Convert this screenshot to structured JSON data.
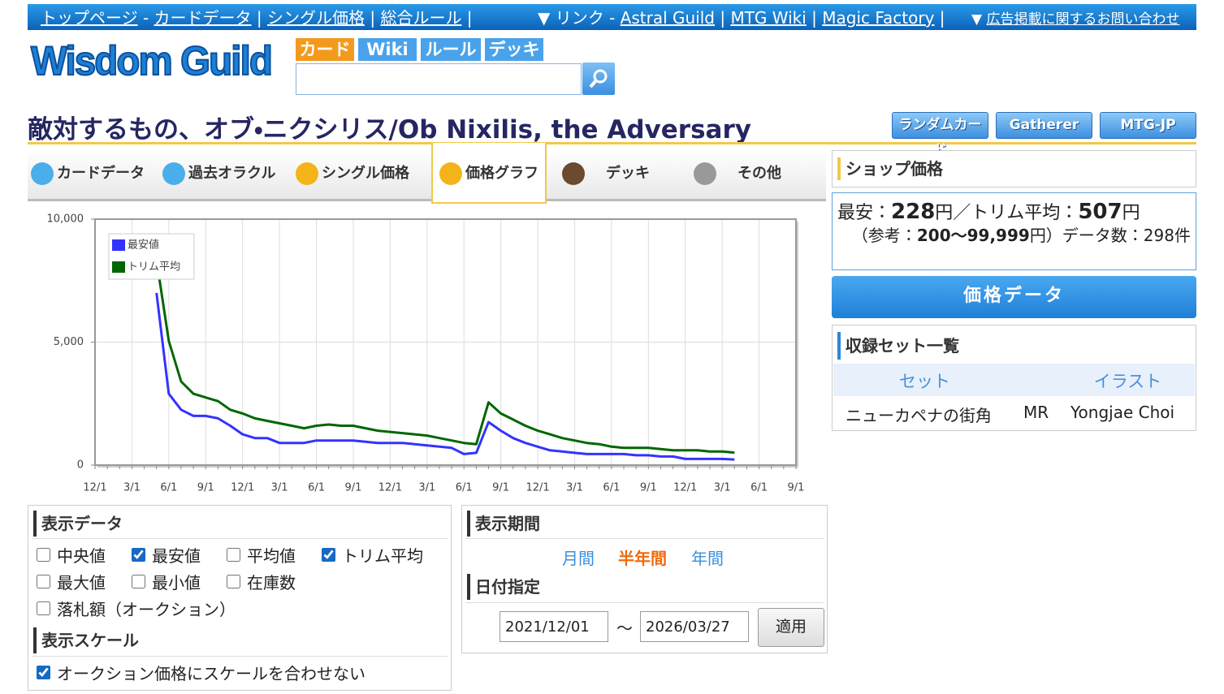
{
  "topbar": {
    "left": [
      {
        "text": "トップページ",
        "link": true
      },
      {
        "text": " - "
      },
      {
        "text": "カードデータ",
        "link": true
      },
      {
        "text": " | "
      },
      {
        "text": "シングル価格",
        "link": true
      },
      {
        "text": " | "
      },
      {
        "text": "総合ルール",
        "link": true
      },
      {
        "text": " |"
      }
    ],
    "middle": [
      {
        "text": "▼ リンク - "
      },
      {
        "text": "Astral Guild",
        "link": true
      },
      {
        "text": " | "
      },
      {
        "text": "MTG Wiki",
        "link": true
      },
      {
        "text": " | "
      },
      {
        "text": "Magic Factory",
        "link": true
      },
      {
        "text": " |"
      }
    ],
    "right": [
      {
        "text": "▼ "
      },
      {
        "text": "広告掲載に関するお問い合わせ",
        "link": true
      }
    ]
  },
  "logo": "Wisdom Guild",
  "search_tabs": [
    "カード",
    "Wiki",
    "ルール",
    "デッキ"
  ],
  "title": "敵対するもの、オブ・ニクシリス/Ob Nixilis, the Adversary",
  "header_buttons": [
    "ランダムカード",
    "Gatherer",
    "MTG-JP"
  ],
  "tabs": [
    "カードデータ",
    "過去オラクル",
    "シングル価格",
    "価格グラフ",
    "デッキ",
    "その他"
  ],
  "chart_data": {
    "type": "line",
    "categories": [
      "12/1",
      null,
      null,
      "3/1",
      null,
      null,
      "6/1",
      null,
      null,
      "9/1",
      null,
      null,
      "12/1",
      null,
      null,
      "3/1",
      null,
      null,
      "6/1",
      null,
      null,
      "9/1",
      null,
      null,
      "12/1",
      null,
      null,
      "3/1",
      null,
      null,
      "6/1",
      null,
      null,
      "9/1",
      null,
      null,
      "12/1",
      null,
      null,
      "3/1",
      null,
      null,
      "6/1",
      null,
      null,
      "9/1",
      null,
      null,
      "12/1",
      null,
      null,
      "3/1",
      null,
      null,
      "6/1",
      null,
      null,
      "9/1"
    ],
    "series": [
      {
        "name": "最安値",
        "color": "#3333ff",
        "values": [
          null,
          null,
          null,
          null,
          null,
          7000,
          2900,
          2250,
          2000,
          2000,
          1900,
          1600,
          1250,
          1100,
          1100,
          900,
          900,
          900,
          1000,
          1000,
          1000,
          1000,
          950,
          900,
          900,
          900,
          850,
          800,
          750,
          700,
          450,
          500,
          1750,
          1400,
          1100,
          900,
          750,
          600,
          550,
          500,
          450,
          450,
          450,
          450,
          400,
          400,
          350,
          350,
          250,
          250,
          250,
          250,
          228,
          null,
          null,
          null,
          null,
          null
        ]
      },
      {
        "name": "トリム平均",
        "color": "#006600",
        "values": [
          null,
          null,
          null,
          null,
          null,
          8350,
          5050,
          3400,
          2900,
          2750,
          2600,
          2250,
          2100,
          1900,
          1800,
          1700,
          1600,
          1500,
          1600,
          1650,
          1600,
          1600,
          1500,
          1400,
          1350,
          1300,
          1250,
          1200,
          1100,
          1000,
          900,
          850,
          2550,
          2100,
          1850,
          1600,
          1400,
          1250,
          1100,
          1000,
          900,
          850,
          750,
          700,
          700,
          700,
          650,
          600,
          600,
          600,
          550,
          550,
          507,
          null,
          null,
          null,
          null,
          null
        ]
      }
    ],
    "ylim": [
      0,
      10000
    ],
    "yticks": [
      0,
      {
        "value": 5000,
        "label": "5,000"
      },
      {
        "value": 10000,
        "label": "10,000"
      }
    ],
    "grid": true,
    "legend": "top-left"
  },
  "shop": {
    "heading": "ショップ価格",
    "lines": [
      [
        {
          "text": "最安："
        },
        {
          "text": "228",
          "bold": true
        },
        {
          "text": "円／トリム平均："
        },
        {
          "text": "507",
          "bold": true
        },
        {
          "text": "円"
        }
      ],
      [
        {
          "text": "（参考："
        },
        {
          "text": "200～99,999",
          "bold": true
        },
        {
          "text": "円）データ数：298件"
        }
      ]
    ],
    "button": "価格データ"
  },
  "sets": {
    "heading": "収録セット一覧",
    "header": [
      "セット",
      "イラスト"
    ],
    "rows": [
      [
        "ニューカペナの街角",
        "MR",
        "Yongjae Choi"
      ]
    ]
  },
  "display_data": {
    "heading": "表示データ",
    "options": [
      {
        "label": "中央値",
        "checked": false
      },
      {
        "label": "最安値",
        "checked": true
      },
      {
        "label": "平均値",
        "checked": false
      },
      {
        "label": "トリム平均",
        "checked": true
      },
      {
        "label": "最大値",
        "checked": false
      },
      {
        "label": "最小値",
        "checked": false
      },
      {
        "label": "在庫数",
        "checked": false
      },
      {
        "label": "落札額（オークション）",
        "checked": false
      }
    ],
    "scale_heading": "表示スケール",
    "scale_option": {
      "label": "オークション価格にスケールを合わせない",
      "checked": true
    }
  },
  "period": {
    "heading": "表示期間",
    "options": [
      "月間",
      "半年間",
      "年間"
    ],
    "active": 1,
    "date_heading": "日付指定",
    "from": "2021/12/01",
    "separator": "～",
    "to": "2026/03/27",
    "apply": "適用"
  }
}
